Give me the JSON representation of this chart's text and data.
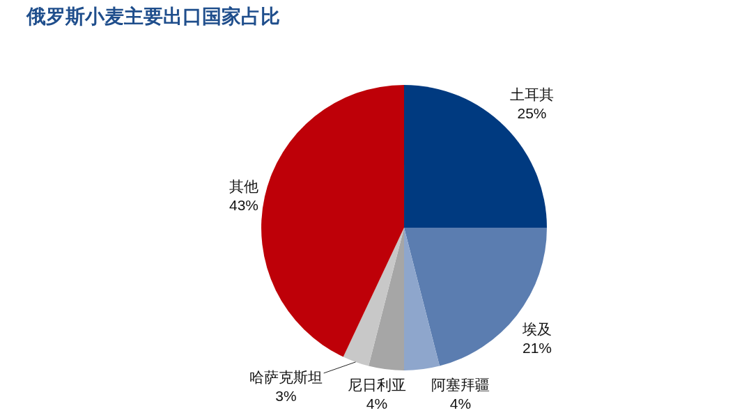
{
  "chart_data": {
    "type": "pie",
    "title": "俄罗斯小麦主要出口国家占比",
    "categories": [
      "土耳其",
      "埃及",
      "阿塞拜疆",
      "尼日利亚",
      "哈萨克斯坦",
      "其他"
    ],
    "values": [
      25,
      21,
      4,
      4,
      3,
      43
    ],
    "value_labels": [
      "25%",
      "21%",
      "4%",
      "4%",
      "3%",
      "43%"
    ],
    "colors": [
      "#003a80",
      "#5b7db0",
      "#8ea6cc",
      "#a6a6a6",
      "#c8c8c8",
      "#be0008"
    ],
    "legend": false
  }
}
